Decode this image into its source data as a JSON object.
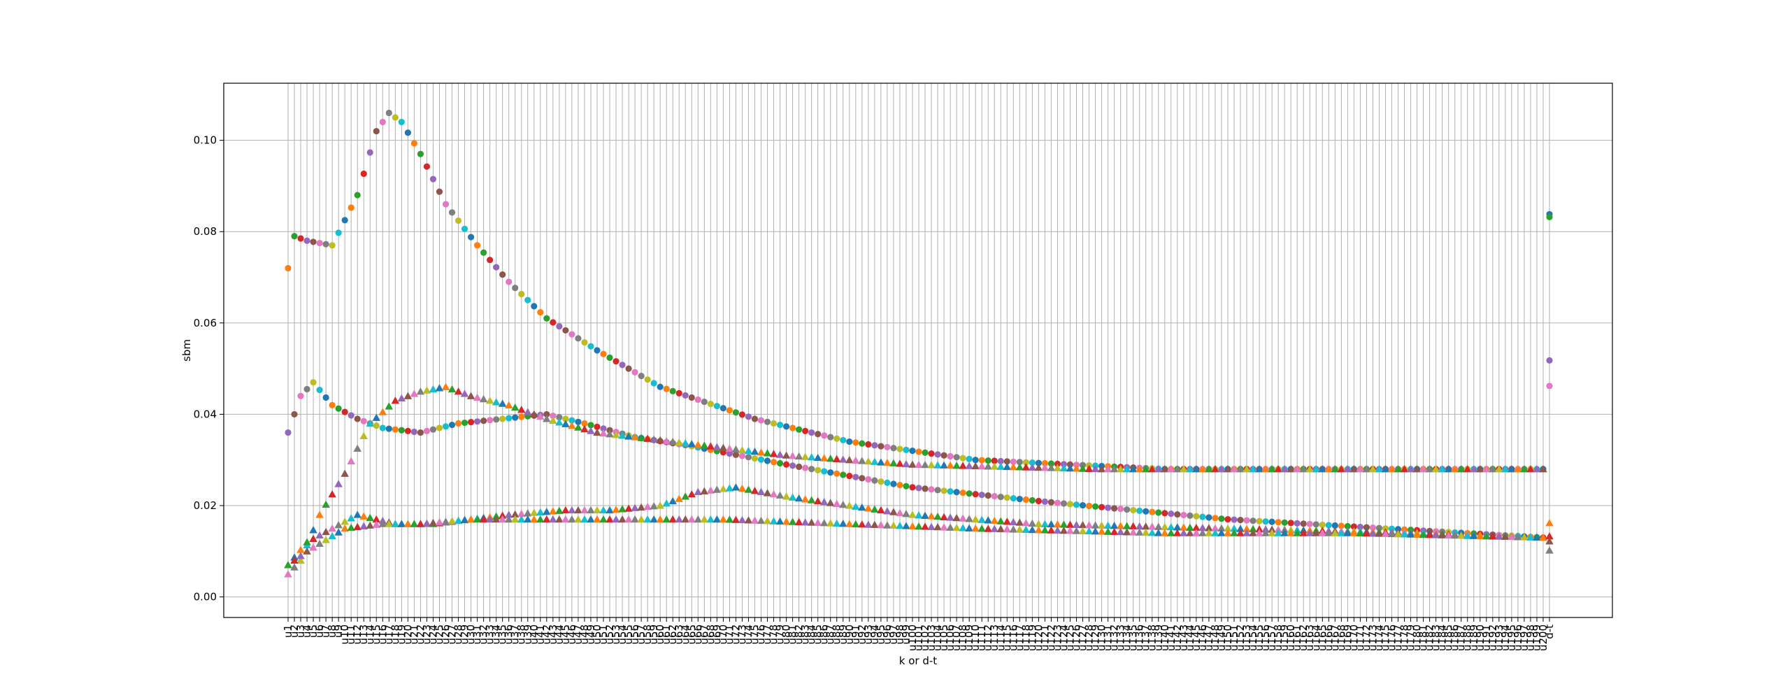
{
  "chart_data": {
    "type": "scatter",
    "title": "",
    "xlabel": "k or d-t",
    "ylabel": "sbm",
    "ylim": [
      -0.0045,
      0.1125
    ],
    "yticks": [
      0.0,
      0.02,
      0.04,
      0.06,
      0.08,
      0.1
    ],
    "ytick_labels": [
      "0.00",
      "0.02",
      "0.04",
      "0.06",
      "0.08",
      "0.10"
    ],
    "grid": true,
    "legend": "none",
    "x_categories": {
      "first_numeric": 1,
      "last_numeric": 200,
      "numeric_prefix": "u",
      "extra": [
        "d-t"
      ],
      "example_labels": [
        "u1",
        "u2",
        "u3",
        "u100",
        "u200",
        "d-t"
      ]
    },
    "palette": [
      "#1f77b4",
      "#ff7f0e",
      "#2ca02c",
      "#d62728",
      "#9467bd",
      "#8c564b",
      "#e377c2",
      "#7f7f7f",
      "#bcbd22",
      "#17becf"
    ],
    "marker_groups": [
      {
        "marker": "circle",
        "curves": [
          {
            "points": [
              [
                1,
                0.072
              ],
              [
                2,
                0.079
              ],
              [
                4,
                0.078
              ],
              [
                8,
                0.077
              ],
              [
                12,
                0.088
              ],
              [
                15,
                0.102
              ],
              [
                17,
                0.106
              ],
              [
                19,
                0.104
              ],
              [
                22,
                0.097
              ],
              [
                26,
                0.086
              ],
              [
                31,
                0.077
              ],
              [
                36,
                0.069
              ],
              [
                42,
                0.061
              ],
              [
                50,
                0.054
              ],
              [
                60,
                0.046
              ],
              [
                75,
                0.039
              ],
              [
                90,
                0.034
              ],
              [
                110,
                0.03
              ],
              [
                140,
                0.028
              ],
              [
                200,
                0.028
              ]
            ]
          },
          {
            "points": [
              [
                1,
                0.036
              ],
              [
                3,
                0.044
              ],
              [
                5,
                0.047
              ],
              [
                8,
                0.042
              ],
              [
                12,
                0.039
              ],
              [
                16,
                0.037
              ],
              [
                22,
                0.036
              ],
              [
                28,
                0.038
              ],
              [
                35,
                0.039
              ],
              [
                42,
                0.04
              ],
              [
                48,
                0.038
              ],
              [
                56,
                0.035
              ],
              [
                65,
                0.033
              ],
              [
                80,
                0.029
              ],
              [
                100,
                0.024
              ],
              [
                120,
                0.021
              ],
              [
                150,
                0.017
              ],
              [
                175,
                0.015
              ],
              [
                200,
                0.013
              ]
            ]
          }
        ],
        "dt_values": [
          0.0838,
          0.0832,
          0.0518,
          0.0462
        ]
      },
      {
        "marker": "triangle",
        "curves": [
          {
            "points": [
              [
                1,
                0.005
              ],
              [
                3,
                0.008
              ],
              [
                6,
                0.018
              ],
              [
                10,
                0.027
              ],
              [
                14,
                0.038
              ],
              [
                18,
                0.043
              ],
              [
                22,
                0.045
              ],
              [
                26,
                0.046
              ],
              [
                30,
                0.044
              ],
              [
                36,
                0.042
              ],
              [
                42,
                0.039
              ],
              [
                50,
                0.036
              ],
              [
                62,
                0.034
              ],
              [
                80,
                0.031
              ],
              [
                100,
                0.029
              ],
              [
                130,
                0.028
              ],
              [
                200,
                0.028
              ]
            ]
          },
          {
            "points": [
              [
                1,
                0.007
              ],
              [
                4,
                0.012
              ],
              [
                8,
                0.015
              ],
              [
                12,
                0.018
              ],
              [
                18,
                0.016
              ],
              [
                24,
                0.016
              ],
              [
                30,
                0.017
              ],
              [
                36,
                0.018
              ],
              [
                45,
                0.019
              ],
              [
                52,
                0.019
              ],
              [
                60,
                0.02
              ],
              [
                66,
                0.023
              ],
              [
                72,
                0.024
              ],
              [
                80,
                0.022
              ],
              [
                90,
                0.02
              ],
              [
                100,
                0.018
              ],
              [
                120,
                0.016
              ],
              [
                150,
                0.015
              ],
              [
                180,
                0.014
              ],
              [
                200,
                0.013
              ]
            ]
          },
          {
            "points": [
              [
                1,
                0.007
              ],
              [
                4,
                0.01
              ],
              [
                10,
                0.015
              ],
              [
                16,
                0.016
              ],
              [
                22,
                0.016
              ],
              [
                30,
                0.017
              ],
              [
                40,
                0.017
              ],
              [
                55,
                0.017
              ],
              [
                70,
                0.017
              ],
              [
                90,
                0.016
              ],
              [
                110,
                0.015
              ],
              [
                140,
                0.014
              ],
              [
                170,
                0.014
              ],
              [
                200,
                0.013
              ]
            ]
          }
        ],
        "dt_values": [
          0.0162,
          0.0133,
          0.0122,
          0.0102
        ]
      }
    ]
  }
}
